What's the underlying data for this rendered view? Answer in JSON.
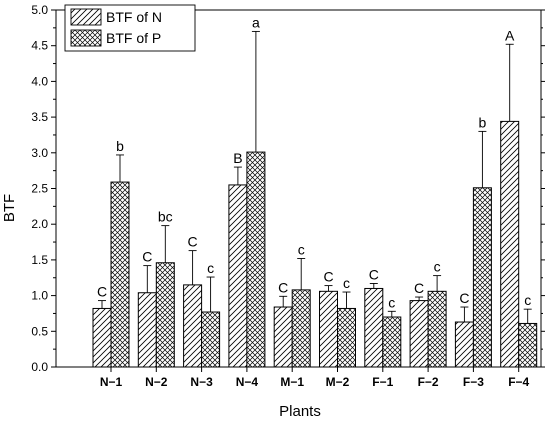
{
  "chart_data": {
    "type": "bar",
    "title": "",
    "xlabel": "Plants",
    "ylabel": "BTF",
    "ylim": [
      0,
      5.0
    ],
    "yticks": [
      0.0,
      0.5,
      1.0,
      1.5,
      2.0,
      2.5,
      3.0,
      3.5,
      4.0,
      4.5,
      5.0
    ],
    "ytick_labels": [
      "0.0",
      "0.5",
      "1.0",
      "1.5",
      "2.0",
      "2.5",
      "3.0",
      "3.5",
      "4.0",
      "4.5",
      "5.0"
    ],
    "legend_position": "top-left",
    "grid": false,
    "categories": [
      "N−1",
      "N−2",
      "N−3",
      "N−4",
      "M−1",
      "M−2",
      "F−1",
      "F−2",
      "F−3",
      "F−4"
    ],
    "series": [
      {
        "name": "BTF of N",
        "pattern": "diagonal-hatch",
        "values": [
          0.82,
          1.04,
          1.15,
          2.55,
          0.84,
          1.06,
          1.1,
          0.93,
          0.63,
          3.44
        ],
        "errors": [
          0.11,
          0.38,
          0.48,
          0.25,
          0.15,
          0.08,
          0.07,
          0.05,
          0.21,
          1.08
        ],
        "labels": [
          "C",
          "C",
          "C",
          "B",
          "C",
          "C",
          "C",
          "C",
          "C",
          "A"
        ]
      },
      {
        "name": "BTF of P",
        "pattern": "crosshatch",
        "values": [
          2.59,
          1.46,
          0.77,
          3.01,
          1.08,
          0.82,
          0.7,
          1.06,
          2.51,
          0.61
        ],
        "errors": [
          0.38,
          0.52,
          0.49,
          1.69,
          0.44,
          0.23,
          0.08,
          0.22,
          0.79,
          0.2
        ],
        "labels": [
          "b",
          "bc",
          "c",
          "a",
          "c",
          "c",
          "c",
          "c",
          "b",
          "c"
        ]
      }
    ]
  }
}
